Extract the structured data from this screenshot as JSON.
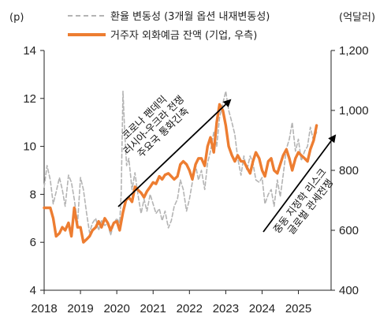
{
  "chart_data": {
    "type": "line",
    "left_axis_unit": "(p)",
    "right_axis_unit": "(억달러)",
    "left_ylim": [
      4,
      14
    ],
    "left_ticks": [
      "4",
      "6",
      "8",
      "10",
      "12",
      "14"
    ],
    "right_ylim": [
      400,
      1200
    ],
    "right_ticks": [
      "400",
      "600",
      "800",
      "1,000",
      "1,200"
    ],
    "xlim": [
      2018,
      2025.9
    ],
    "x_ticks": [
      "2018",
      "2019",
      "2020",
      "2021",
      "2022",
      "2023",
      "2024",
      "2025"
    ],
    "grid": false,
    "legend_position": "top",
    "series": [
      {
        "name": "환율 변동성 (3개월 옵션 내재변동성)",
        "axis": "left",
        "style": "dashed",
        "color": "#b4b4b4",
        "x": [
          2018.0,
          2018.08,
          2018.17,
          2018.25,
          2018.33,
          2018.42,
          2018.5,
          2018.58,
          2018.67,
          2018.75,
          2018.83,
          2018.92,
          2019.0,
          2019.08,
          2019.17,
          2019.25,
          2019.33,
          2019.42,
          2019.5,
          2019.58,
          2019.67,
          2019.75,
          2019.83,
          2019.92,
          2020.0,
          2020.08,
          2020.12,
          2020.17,
          2020.22,
          2020.27,
          2020.33,
          2020.42,
          2020.5,
          2020.58,
          2020.67,
          2020.75,
          2020.83,
          2020.92,
          2021.0,
          2021.08,
          2021.17,
          2021.25,
          2021.33,
          2021.42,
          2021.5,
          2021.58,
          2021.67,
          2021.75,
          2021.83,
          2021.92,
          2022.0,
          2022.08,
          2022.17,
          2022.25,
          2022.33,
          2022.42,
          2022.5,
          2022.58,
          2022.67,
          2022.75,
          2022.83,
          2022.92,
          2023.0,
          2023.08,
          2023.17,
          2023.25,
          2023.33,
          2023.42,
          2023.5,
          2023.58,
          2023.67,
          2023.75,
          2023.83,
          2023.92,
          2024.0,
          2024.08,
          2024.17,
          2024.25,
          2024.33,
          2024.42,
          2024.5,
          2024.58,
          2024.67,
          2024.75,
          2024.83,
          2024.92,
          2025.0,
          2025.08,
          2025.17,
          2025.25,
          2025.33,
          2025.42,
          2025.5
        ],
        "values": [
          8.3,
          9.2,
          8.6,
          7.6,
          8.1,
          8.7,
          8.2,
          7.5,
          8.8,
          8.5,
          7.8,
          6.8,
          8.7,
          8.2,
          7.2,
          6.4,
          6.8,
          7.0,
          6.5,
          6.9,
          6.7,
          6.8,
          6.3,
          6.8,
          7.0,
          6.8,
          8.0,
          12.3,
          10.5,
          9.2,
          9.5,
          8.2,
          8.9,
          8.0,
          7.2,
          7.8,
          7.3,
          8.0,
          7.6,
          7.2,
          7.4,
          6.9,
          7.3,
          6.6,
          6.9,
          7.5,
          7.8,
          8.6,
          8.2,
          7.3,
          7.8,
          8.5,
          9.2,
          8.6,
          9.0,
          8.2,
          9.3,
          9.8,
          10.6,
          10.0,
          11.2,
          11.8,
          12.3,
          11.5,
          11.0,
          10.5,
          9.5,
          8.8,
          9.6,
          9.0,
          9.6,
          9.3,
          8.6,
          8.5,
          8.7,
          7.6,
          8.0,
          8.2,
          7.5,
          8.6,
          7.9,
          8.8,
          9.9,
          10.3,
          11.0,
          9.8,
          10.3,
          9.4,
          9.8,
          10.0,
          10.8,
          10.2,
          10.6
        ]
      },
      {
        "name": "거주자 외화예금 잔액 (기업, 우측)",
        "axis": "right",
        "style": "solid",
        "color": "#ed7d31",
        "x": [
          2018.0,
          2018.08,
          2018.17,
          2018.25,
          2018.33,
          2018.42,
          2018.5,
          2018.58,
          2018.67,
          2018.75,
          2018.83,
          2018.92,
          2019.0,
          2019.08,
          2019.17,
          2019.25,
          2019.33,
          2019.42,
          2019.5,
          2019.58,
          2019.67,
          2019.75,
          2019.83,
          2019.92,
          2020.0,
          2020.08,
          2020.17,
          2020.25,
          2020.33,
          2020.42,
          2020.5,
          2020.58,
          2020.67,
          2020.75,
          2020.83,
          2020.92,
          2021.0,
          2021.08,
          2021.17,
          2021.25,
          2021.33,
          2021.42,
          2021.5,
          2021.58,
          2021.67,
          2021.75,
          2021.83,
          2021.92,
          2022.0,
          2022.08,
          2022.17,
          2022.25,
          2022.33,
          2022.42,
          2022.5,
          2022.58,
          2022.67,
          2022.75,
          2022.83,
          2022.92,
          2023.0,
          2023.08,
          2023.17,
          2023.25,
          2023.33,
          2023.42,
          2023.5,
          2023.58,
          2023.67,
          2023.75,
          2023.83,
          2023.92,
          2024.0,
          2024.08,
          2024.17,
          2024.25,
          2024.33,
          2024.42,
          2024.5,
          2024.58,
          2024.67,
          2024.75,
          2024.83,
          2024.92,
          2025.0,
          2025.08,
          2025.17,
          2025.25,
          2025.33,
          2025.42,
          2025.5
        ],
        "values": [
          675,
          675,
          675,
          640,
          580,
          590,
          610,
          600,
          625,
          580,
          675,
          610,
          610,
          560,
          570,
          580,
          600,
          610,
          630,
          610,
          640,
          625,
          600,
          625,
          630,
          600,
          660,
          700,
          710,
          695,
          745,
          735,
          725,
          710,
          730,
          745,
          760,
          755,
          780,
          770,
          785,
          790,
          780,
          770,
          780,
          820,
          830,
          820,
          800,
          770,
          820,
          840,
          840,
          815,
          880,
          910,
          860,
          960,
          1020,
          1000,
          950,
          880,
          850,
          830,
          850,
          830,
          830,
          810,
          790,
          830,
          860,
          840,
          800,
          780,
          830,
          840,
          800,
          790,
          820,
          850,
          870,
          840,
          800,
          840,
          860,
          850,
          840,
          830,
          870,
          900,
          950
        ]
      }
    ],
    "annotations": [
      {
        "lines": [
          "코로나 팬데믹",
          "러시아-우크라 전쟁",
          "주요국 통화긴축"
        ]
      },
      {
        "lines": [
          "중동 지정학 리스크",
          "글로벌 관세전쟁"
        ]
      }
    ]
  }
}
